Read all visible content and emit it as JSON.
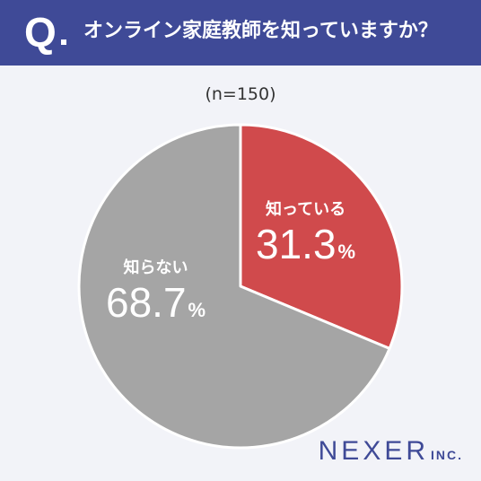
{
  "header": {
    "q_mark": "Q",
    "question": "オンライン家庭教師を知っていますか？"
  },
  "sample_size": "(n=150)",
  "chart_data": {
    "type": "pie",
    "title": "オンライン家庭教師を知っていますか？",
    "slices": [
      {
        "label": "知っている",
        "value": 31.3,
        "value_label": "31.3",
        "unit": "%",
        "color": "#d04a4c"
      },
      {
        "label": "知らない",
        "value": 68.7,
        "value_label": "68.7",
        "unit": "%",
        "color": "#a5a5a5"
      }
    ],
    "start": "12 o'clock",
    "direction": "clockwise"
  },
  "logo": {
    "main": "NEXER",
    "suffix": "INC."
  }
}
